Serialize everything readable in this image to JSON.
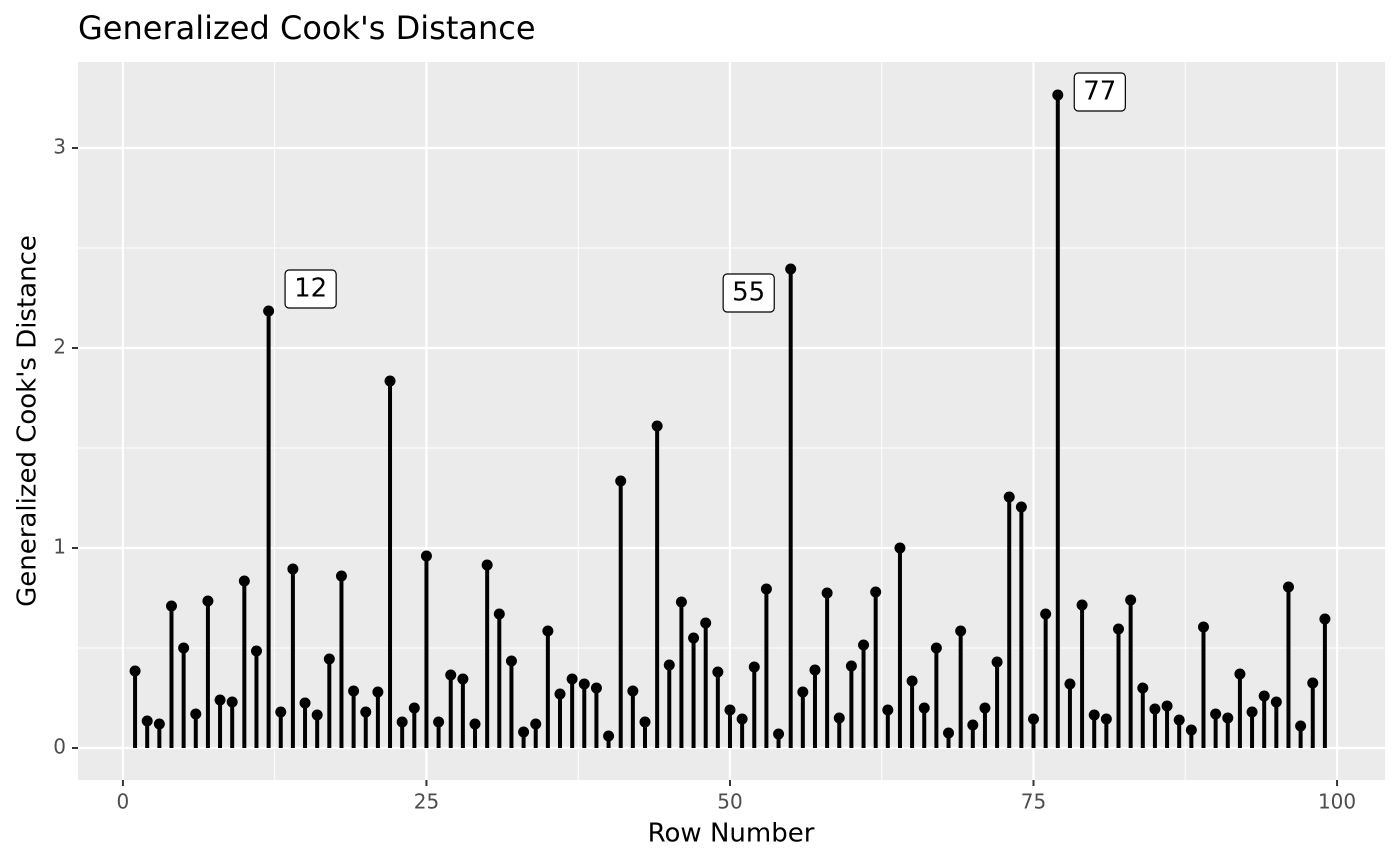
{
  "chart_data": {
    "type": "lollipop",
    "title": "Generalized Cook's Distance",
    "x_label": "Row Number",
    "y_label": "Generalized Cook's Distance",
    "x": [
      1,
      2,
      3,
      4,
      5,
      6,
      7,
      8,
      9,
      10,
      11,
      12,
      13,
      14,
      15,
      16,
      17,
      18,
      19,
      20,
      21,
      22,
      23,
      24,
      25,
      26,
      27,
      28,
      29,
      30,
      31,
      32,
      33,
      34,
      35,
      36,
      37,
      38,
      39,
      40,
      41,
      42,
      43,
      44,
      45,
      46,
      47,
      48,
      49,
      50,
      51,
      52,
      53,
      54,
      55,
      56,
      57,
      58,
      59,
      60,
      61,
      62,
      63,
      64,
      65,
      66,
      67,
      68,
      69,
      70,
      71,
      72,
      73,
      74,
      75,
      76,
      77,
      78,
      79,
      80,
      81,
      82,
      83,
      84,
      85,
      86,
      87,
      88,
      89,
      90,
      91,
      92,
      93,
      94,
      95,
      96,
      97,
      98,
      99
    ],
    "values": [
      0.385,
      0.135,
      0.12,
      0.71,
      0.5,
      0.17,
      0.735,
      0.24,
      0.23,
      0.835,
      0.485,
      2.185,
      0.18,
      0.895,
      0.225,
      0.165,
      0.445,
      0.86,
      0.285,
      0.18,
      0.28,
      1.835,
      0.13,
      0.2,
      0.96,
      0.13,
      0.365,
      0.345,
      0.12,
      0.915,
      0.67,
      0.435,
      0.08,
      0.12,
      0.585,
      0.27,
      0.345,
      0.32,
      0.3,
      0.06,
      1.335,
      0.285,
      0.13,
      1.61,
      0.415,
      0.73,
      0.55,
      0.625,
      0.38,
      0.19,
      0.145,
      0.405,
      0.795,
      0.07,
      2.395,
      0.28,
      0.39,
      0.775,
      0.15,
      0.41,
      0.515,
      0.78,
      0.19,
      1.0,
      0.335,
      0.2,
      0.5,
      0.075,
      0.585,
      0.115,
      0.2,
      0.43,
      1.255,
      1.205,
      0.145,
      0.67,
      3.265,
      0.32,
      0.715,
      0.165,
      0.145,
      0.595,
      0.74,
      0.3,
      0.195,
      0.21,
      0.14,
      0.09,
      0.605,
      0.17,
      0.15,
      0.37,
      0.18,
      0.26,
      0.23,
      0.805,
      0.11,
      0.325,
      0.645
    ],
    "color": "#000000",
    "annotations": [
      "12",
      "55",
      "77"
    ],
    "xlim": [
      -3.7,
      103.95
    ],
    "ylim": [
      -0.16,
      3.43
    ],
    "xticks": [
      0,
      25,
      50,
      75,
      100
    ],
    "yticks": [
      0,
      1,
      2,
      3
    ],
    "grid": true
  }
}
